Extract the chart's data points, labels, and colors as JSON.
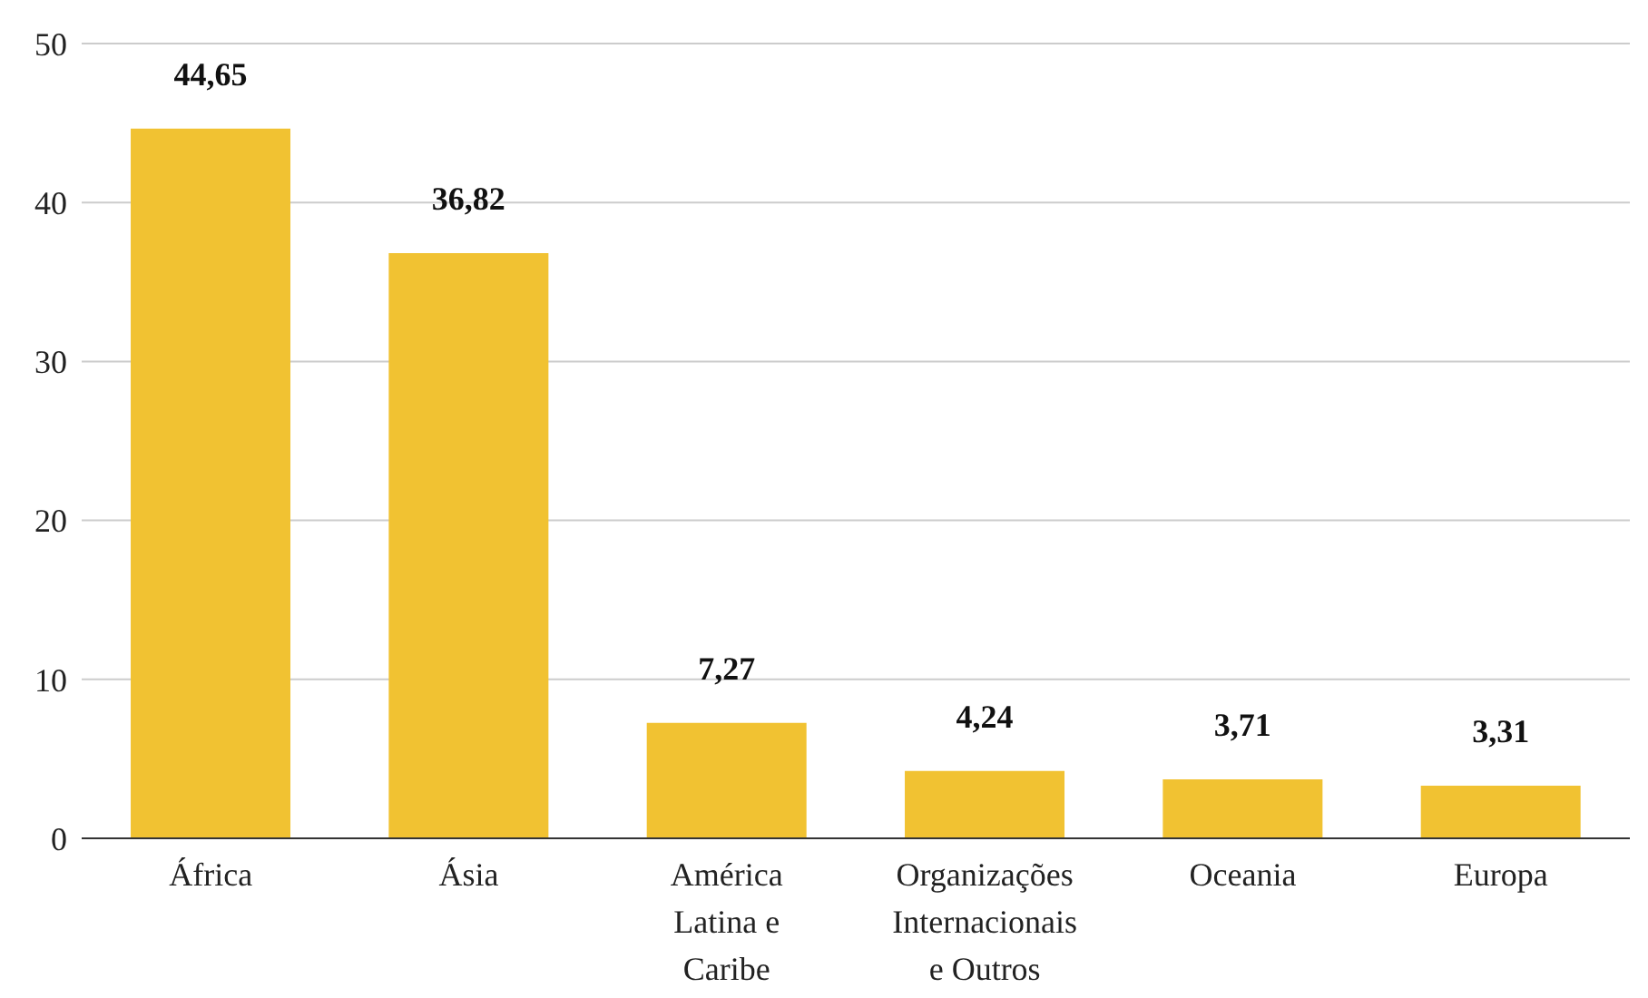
{
  "chart_data": {
    "type": "bar",
    "categories": [
      "África",
      "Ásia",
      "América Latina e Caribe",
      "Organizações Internacionais e Outros",
      "Oceania",
      "Europa"
    ],
    "values": [
      44.65,
      36.82,
      7.27,
      4.24,
      3.71,
      3.31
    ],
    "value_labels": [
      "44,65",
      "36,82",
      "7,27",
      "4,24",
      "3,71",
      "3,31"
    ],
    "color": "#f1c232",
    "ylim": [
      0,
      50
    ],
    "yticks": [
      0,
      10,
      20,
      30,
      40,
      50
    ],
    "grid": "y"
  }
}
